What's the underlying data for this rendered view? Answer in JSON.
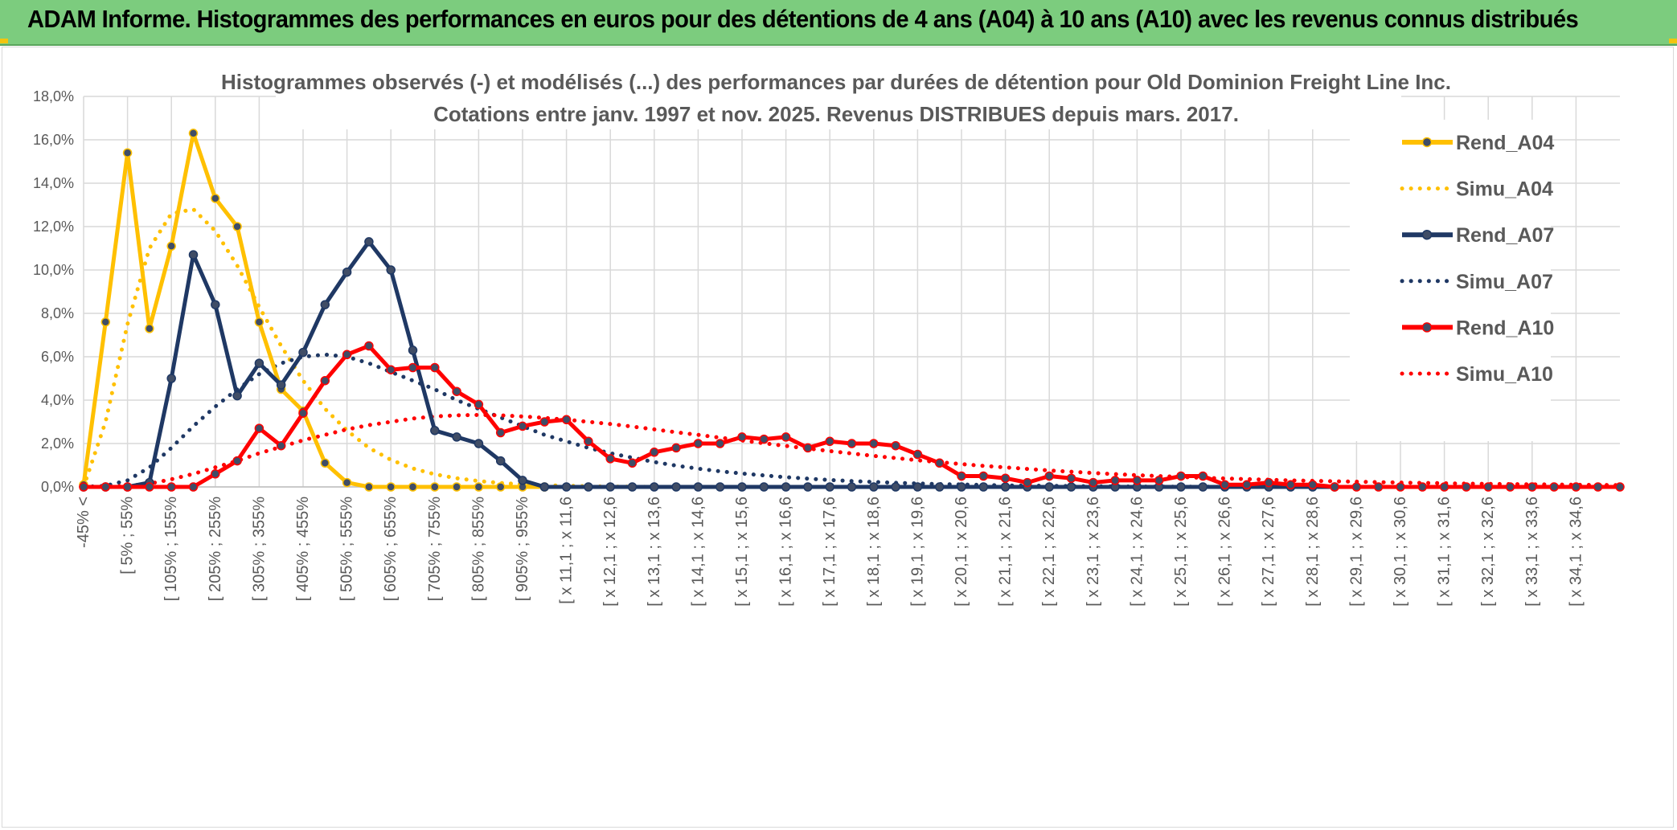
{
  "banner": {
    "text": "ADAM Informe. Histogrammes des performances en euros pour des détentions de 4 ans (A04) à 10 ans (A10) avec les revenus connus distribués"
  },
  "chart_data": {
    "type": "line",
    "title": "Histogrammes observés (-) et modélisés (...) des performances par durées de détention pour Old Dominion Freight Line Inc.",
    "subtitle": "Cotations entre janv. 1997 et nov. 2025. Revenus DISTRIBUES depuis mars. 2017.",
    "xlabel": "",
    "ylabel": "",
    "ylim": [
      0,
      18
    ],
    "y_ticks": [
      "0,0%",
      "2,0%",
      "4,0%",
      "6,0%",
      "8,0%",
      "10,0%",
      "12,0%",
      "14,0%",
      "16,0%",
      "18,0%"
    ],
    "grid": true,
    "legend_position": "right",
    "x_count": 71,
    "x_tick_labels": [
      "-45% <",
      "[ 5% ; 55%",
      "[ 105% ; 155%",
      "[ 205% ; 255%",
      "[ 305% ; 355%",
      "[ 405% ; 455%",
      "[ 505% ; 555%",
      "[ 605% ; 655%",
      "[ 705% ; 755%",
      "[ 805% ; 855%",
      "[ 905% ; 955%",
      "[ x 11,1 ; x 11,6",
      "[ x 12,1 ; x 12,6",
      "[ x 13,1 ; x 13,6",
      "[ x 14,1 ; x 14,6",
      "[ x 15,1 ; x 15,6",
      "[ x 16,1 ; x 16,6",
      "[ x 17,1 ; x 17,6",
      "[ x 18,1 ; x 18,6",
      "[ x 19,1 ; x 19,6",
      "[ x 20,1 ; x 20,6",
      "[ x 21,1 ; x 21,6",
      "[ x 22,1 ; x 22,6",
      "[ x 23,1 ; x 23,6",
      "[ x 24,1 ; x 24,6",
      "[ x 25,1 ; x 25,6",
      "[ x 26,1 ; x 26,6",
      "[ x 27,1 ; x 27,6",
      "[ x 28,1 ; x 28,6",
      "[ x 29,1 ; x 29,6",
      "[ x 30,1 ; x 30,6",
      "[ x 31,1 ; x 31,6",
      "[ x 32,1 ; x 32,6",
      "[ x 33,1 ; x 33,6",
      "[ x 34,1 ; x 34,6"
    ],
    "series": [
      {
        "name": "Rend_A04",
        "color": "#ffc000",
        "style": "solid",
        "markers": true,
        "values": [
          0.1,
          7.6,
          15.4,
          7.3,
          11.1,
          16.3,
          13.3,
          12.0,
          7.6,
          4.5,
          3.5,
          1.1,
          0.2,
          0.0,
          0.0,
          0.0,
          0.0,
          0.0,
          0.0,
          0.0,
          0.0,
          0.0
        ]
      },
      {
        "name": "Simu_A04",
        "color": "#ffc000",
        "style": "dotted",
        "values": [
          0.0,
          3.0,
          7.5,
          11.0,
          12.6,
          12.8,
          11.8,
          10.2,
          8.3,
          6.5,
          4.9,
          3.6,
          2.6,
          1.8,
          1.25,
          0.85,
          0.58,
          0.4,
          0.27,
          0.18,
          0.12,
          0.08,
          0.05,
          0.03,
          0.02,
          0.01,
          0.0,
          0.0,
          0.0,
          0.0,
          0.0,
          0.0,
          0.0,
          0.0,
          0.0,
          0.0,
          0.0,
          0.0,
          0.0,
          0.0,
          0.0,
          0.0,
          0.0,
          0.0,
          0.0,
          0.0,
          0.0,
          0.0,
          0.0,
          0.0,
          0.0,
          0.0,
          0.0,
          0.0,
          0.0,
          0.0,
          0.0,
          0.0,
          0.0,
          0.0,
          0.0,
          0.0,
          0.0,
          0.0,
          0.0,
          0.0,
          0.0,
          0.0,
          0.0,
          0.0,
          0.0
        ]
      },
      {
        "name": "Rend_A07",
        "color": "#1f3864",
        "style": "solid",
        "markers": true,
        "values": [
          0.0,
          0.0,
          0.0,
          0.2,
          5.0,
          10.7,
          8.4,
          4.2,
          5.7,
          4.7,
          6.2,
          8.4,
          9.9,
          11.3,
          10.0,
          6.3,
          2.6,
          2.3,
          2.0,
          1.2,
          0.3,
          0.0,
          0.0,
          0.0,
          0.0,
          0.0,
          0.0,
          0.0,
          0.0,
          0.0,
          0.0,
          0.0,
          0.0,
          0.0,
          0.0,
          0.0,
          0.0,
          0.0,
          0.0,
          0.0,
          0.0,
          0.0,
          0.0,
          0.0,
          0.0,
          0.0,
          0.0,
          0.0,
          0.0,
          0.0,
          0.0,
          0.0,
          0.0,
          0.0,
          0.0,
          0.0,
          0.0,
          0.0
        ]
      },
      {
        "name": "Simu_A07",
        "color": "#1f3864",
        "style": "dotted",
        "values": [
          0.0,
          0.05,
          0.3,
          0.9,
          1.8,
          2.8,
          3.7,
          4.5,
          5.2,
          5.7,
          6.0,
          6.1,
          6.0,
          5.7,
          5.3,
          4.9,
          4.5,
          4.0,
          3.6,
          3.2,
          2.8,
          2.4,
          2.1,
          1.8,
          1.55,
          1.35,
          1.15,
          0.98,
          0.84,
          0.72,
          0.62,
          0.53,
          0.45,
          0.38,
          0.32,
          0.27,
          0.23,
          0.19,
          0.16,
          0.13,
          0.11,
          0.09,
          0.07,
          0.06,
          0.05,
          0.04,
          0.03,
          0.02,
          0.02,
          0.01,
          0.01,
          0.01,
          0.0,
          0.0,
          0.0,
          0.0,
          0.0,
          0.0,
          0.0,
          0.0,
          0.0,
          0.0,
          0.0,
          0.0,
          0.0,
          0.0,
          0.0,
          0.0,
          0.0,
          0.0,
          0.0
        ]
      },
      {
        "name": "Rend_A10",
        "color": "#ff0000",
        "style": "solid",
        "markers": true,
        "values": [
          0.0,
          0.0,
          0.0,
          0.0,
          0.0,
          0.0,
          0.6,
          1.2,
          2.7,
          1.9,
          3.4,
          4.9,
          6.1,
          6.5,
          5.4,
          5.5,
          5.5,
          4.4,
          3.8,
          2.5,
          2.8,
          3.0,
          3.1,
          2.1,
          1.3,
          1.1,
          1.6,
          1.8,
          2.0,
          2.0,
          2.3,
          2.2,
          2.3,
          1.8,
          2.1,
          2.0,
          2.0,
          1.9,
          1.5,
          1.1,
          0.5,
          0.5,
          0.4,
          0.2,
          0.5,
          0.4,
          0.2,
          0.3,
          0.3,
          0.3,
          0.5,
          0.5,
          0.1,
          0.1,
          0.2,
          0.1,
          0.1,
          0.0,
          0.0,
          0.0,
          0.0,
          0.0,
          0.0,
          0.0,
          0.0,
          0.0,
          0.0,
          0.0,
          0.0,
          0.0,
          0.0
        ]
      },
      {
        "name": "Simu_A10",
        "color": "#ff0000",
        "style": "dotted",
        "values": [
          0.0,
          0.0,
          0.05,
          0.15,
          0.35,
          0.6,
          0.9,
          1.2,
          1.55,
          1.85,
          2.15,
          2.4,
          2.65,
          2.85,
          3.0,
          3.15,
          3.25,
          3.3,
          3.32,
          3.3,
          3.25,
          3.18,
          3.1,
          3.0,
          2.9,
          2.78,
          2.65,
          2.52,
          2.4,
          2.27,
          2.14,
          2.01,
          1.89,
          1.77,
          1.65,
          1.54,
          1.43,
          1.33,
          1.23,
          1.14,
          1.05,
          0.97,
          0.9,
          0.83,
          0.76,
          0.7,
          0.64,
          0.59,
          0.54,
          0.5,
          0.46,
          0.42,
          0.39,
          0.36,
          0.33,
          0.3,
          0.28,
          0.26,
          0.24,
          0.22,
          0.2,
          0.18,
          0.17,
          0.15,
          0.14,
          0.13,
          0.12,
          0.11,
          0.1,
          0.09,
          0.08
        ]
      }
    ]
  }
}
